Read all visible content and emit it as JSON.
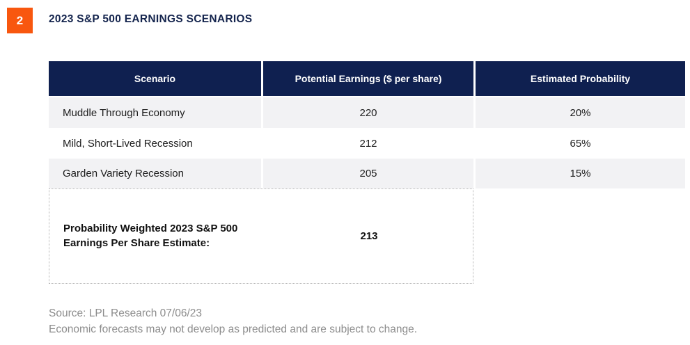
{
  "badge": "2",
  "title": "2023 S&P 500 EARNINGS SCENARIOS",
  "chart_data": {
    "type": "table",
    "title": "2023 S&P 500 EARNINGS SCENARIOS",
    "columns": [
      "Scenario",
      "Potential Earnings ($ per share)",
      "Estimated Probability"
    ],
    "rows": [
      [
        "Muddle Through Economy",
        "220",
        "20%"
      ],
      [
        "Mild, Short-Lived Recession",
        "212",
        "65%"
      ],
      [
        "Garden Variety Recession",
        "205",
        "15%"
      ]
    ],
    "summary": {
      "label": "Probability Weighted 2023 S&P 500 Earnings Per Share Estimate:",
      "value": "213"
    }
  },
  "footer": {
    "source": "Source: LPL Research 07/06/23",
    "disclaimer": "Economic forecasts may not develop as predicted and are subject to change."
  },
  "colors": {
    "accent_orange": "#F8570F",
    "header_navy": "#0F2050",
    "row_stripe_gray": "#F2F2F4",
    "footer_gray": "#8C8C8C"
  }
}
